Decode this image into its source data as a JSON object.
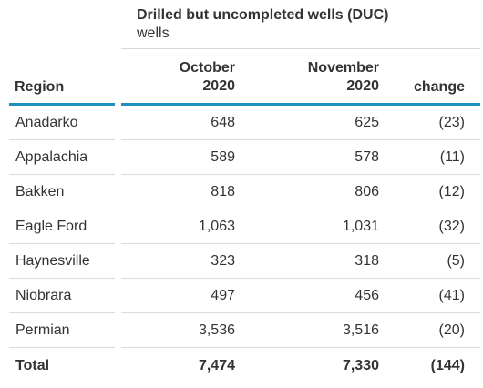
{
  "title": "Drilled but uncompleted wells (DUC)",
  "unit": "wells",
  "columns": {
    "region": "Region",
    "october_line1": "October",
    "october_line2": "2020",
    "november_line1": "November",
    "november_line2": "2020",
    "change": "change"
  },
  "rows": [
    {
      "region": "Anadarko",
      "october": "648",
      "november": "625",
      "change": "(23)"
    },
    {
      "region": "Appalachia",
      "october": "589",
      "november": "578",
      "change": "(11)"
    },
    {
      "region": "Bakken",
      "october": "818",
      "november": "806",
      "change": "(12)"
    },
    {
      "region": "Eagle Ford",
      "october": "1,063",
      "november": "1,031",
      "change": "(32)"
    },
    {
      "region": "Haynesville",
      "october": "323",
      "november": "318",
      "change": "(5)"
    },
    {
      "region": "Niobrara",
      "october": "497",
      "november": "456",
      "change": "(41)"
    },
    {
      "region": "Permian",
      "october": "3,536",
      "november": "3,516",
      "change": "(20)"
    }
  ],
  "total": {
    "region": "Total",
    "october": "7,474",
    "november": "7,330",
    "change": "(144)"
  },
  "colors": {
    "accent": "#1f8fbf",
    "text": "#333333",
    "separator": "#dcdcdc"
  }
}
